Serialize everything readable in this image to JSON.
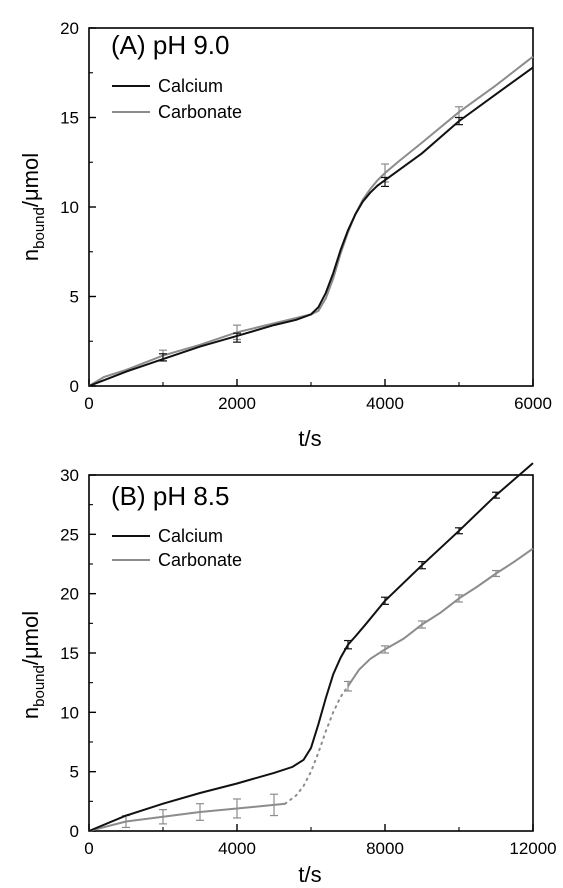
{
  "chart_data": [
    {
      "type": "line",
      "title": "(A) pH 9.0",
      "xlabel": "t/s",
      "ylabel": {
        "base": "n",
        "sub": "bound",
        "rest": "/μmol"
      },
      "xlim": [
        0,
        6000
      ],
      "ylim": [
        0,
        20
      ],
      "xticks": [
        0,
        2000,
        4000,
        6000
      ],
      "yticks": [
        0,
        5,
        10,
        15,
        20
      ],
      "legend": "top-left",
      "series": [
        {
          "name": "Calcium",
          "color": "#111111",
          "x": [
            0,
            500,
            1000,
            1500,
            2000,
            2500,
            2800,
            3000,
            3100,
            3200,
            3300,
            3400,
            3500,
            3600,
            3700,
            3800,
            3900,
            4000,
            4200,
            4500,
            5000,
            5500,
            6000
          ],
          "y": [
            0.0,
            0.8,
            1.5,
            2.2,
            2.8,
            3.4,
            3.7,
            4.0,
            4.4,
            5.2,
            6.3,
            7.6,
            8.7,
            9.6,
            10.3,
            10.8,
            11.2,
            11.5,
            12.1,
            13.0,
            14.8,
            16.3,
            17.8
          ],
          "error_x": [
            1000,
            2000,
            4000,
            5000
          ],
          "error_y": [
            1.6,
            2.7,
            11.4,
            14.8
          ],
          "error_e": [
            0.2,
            0.25,
            0.25,
            0.2
          ]
        },
        {
          "name": "Carbonate",
          "color": "#8c8c8c",
          "x": [
            0,
            200,
            500,
            1000,
            1500,
            2000,
            2500,
            2800,
            3000,
            3100,
            3200,
            3300,
            3400,
            3500,
            3600,
            3700,
            3800,
            3900,
            4000,
            4200,
            4500,
            5000,
            5500,
            6000
          ],
          "y": [
            0.0,
            0.5,
            0.9,
            1.7,
            2.3,
            3.0,
            3.5,
            3.8,
            4.0,
            4.2,
            4.9,
            6.0,
            7.4,
            8.6,
            9.6,
            10.4,
            11.0,
            11.5,
            11.9,
            12.6,
            13.6,
            15.3,
            16.8,
            18.4
          ],
          "error_x": [
            1000,
            2000,
            4000,
            5000
          ],
          "error_y": [
            1.7,
            3.0,
            11.9,
            15.3
          ],
          "error_e": [
            0.3,
            0.4,
            0.5,
            0.3
          ]
        }
      ]
    },
    {
      "type": "line",
      "title": "(B) pH 8.5",
      "xlabel": "t/s",
      "ylabel": {
        "base": "n",
        "sub": "bound",
        "rest": "/μmol"
      },
      "xlim": [
        0,
        12000
      ],
      "ylim": [
        0,
        30
      ],
      "xticks": [
        0,
        4000,
        8000,
        12000
      ],
      "yticks": [
        0,
        5,
        10,
        15,
        20,
        25,
        30
      ],
      "legend": "top-left",
      "series": [
        {
          "name": "Calcium",
          "color": "#111111",
          "x": [
            0,
            1000,
            2000,
            3000,
            4000,
            5000,
            5500,
            5800,
            6000,
            6200,
            6400,
            6600,
            6800,
            7000,
            7200,
            7500,
            8000,
            9000,
            10000,
            11000,
            12000
          ],
          "y": [
            0.0,
            1.3,
            2.3,
            3.2,
            4.0,
            4.9,
            5.4,
            6.0,
            7.0,
            9.0,
            11.2,
            13.2,
            14.6,
            15.7,
            16.4,
            17.5,
            19.4,
            22.4,
            25.3,
            28.3,
            31.0
          ],
          "error_x": [
            7000,
            8000,
            9000,
            10000,
            11000
          ],
          "error_y": [
            15.7,
            19.4,
            22.4,
            25.3,
            28.3
          ],
          "error_e": [
            0.35,
            0.3,
            0.3,
            0.25,
            0.25
          ]
        },
        {
          "name": "Carbonate",
          "color": "#8c8c8c",
          "x": [
            0,
            1000,
            2000,
            3000,
            4000,
            5000,
            5300
          ],
          "y": [
            0.0,
            0.8,
            1.2,
            1.6,
            1.9,
            2.2,
            2.3
          ],
          "error_x": [
            1000,
            2000,
            3000,
            4000,
            5000
          ],
          "error_y": [
            0.8,
            1.2,
            1.6,
            1.9,
            2.2
          ],
          "error_e": [
            0.5,
            0.6,
            0.7,
            0.8,
            0.9
          ],
          "dotted_x": [
            5300,
            5600,
            5800,
            6000,
            6200,
            6400,
            6600,
            6800,
            7000
          ],
          "dotted_y": [
            2.3,
            3.0,
            3.8,
            5.0,
            6.6,
            8.4,
            10.0,
            11.3,
            12.2
          ],
          "tail_x": [
            7000,
            7300,
            7600,
            8000,
            8500,
            9000,
            9500,
            10000,
            10500,
            11000,
            11500,
            12000
          ],
          "tail_y": [
            12.2,
            13.6,
            14.5,
            15.3,
            16.2,
            17.4,
            18.4,
            19.6,
            20.6,
            21.7,
            22.7,
            23.8
          ],
          "tail_error_x": [
            7000,
            8000,
            9000,
            10000,
            11000
          ],
          "tail_error_y": [
            12.2,
            15.3,
            17.4,
            19.6,
            21.7
          ],
          "tail_error_e": [
            0.4,
            0.3,
            0.3,
            0.3,
            0.25
          ]
        }
      ]
    }
  ]
}
